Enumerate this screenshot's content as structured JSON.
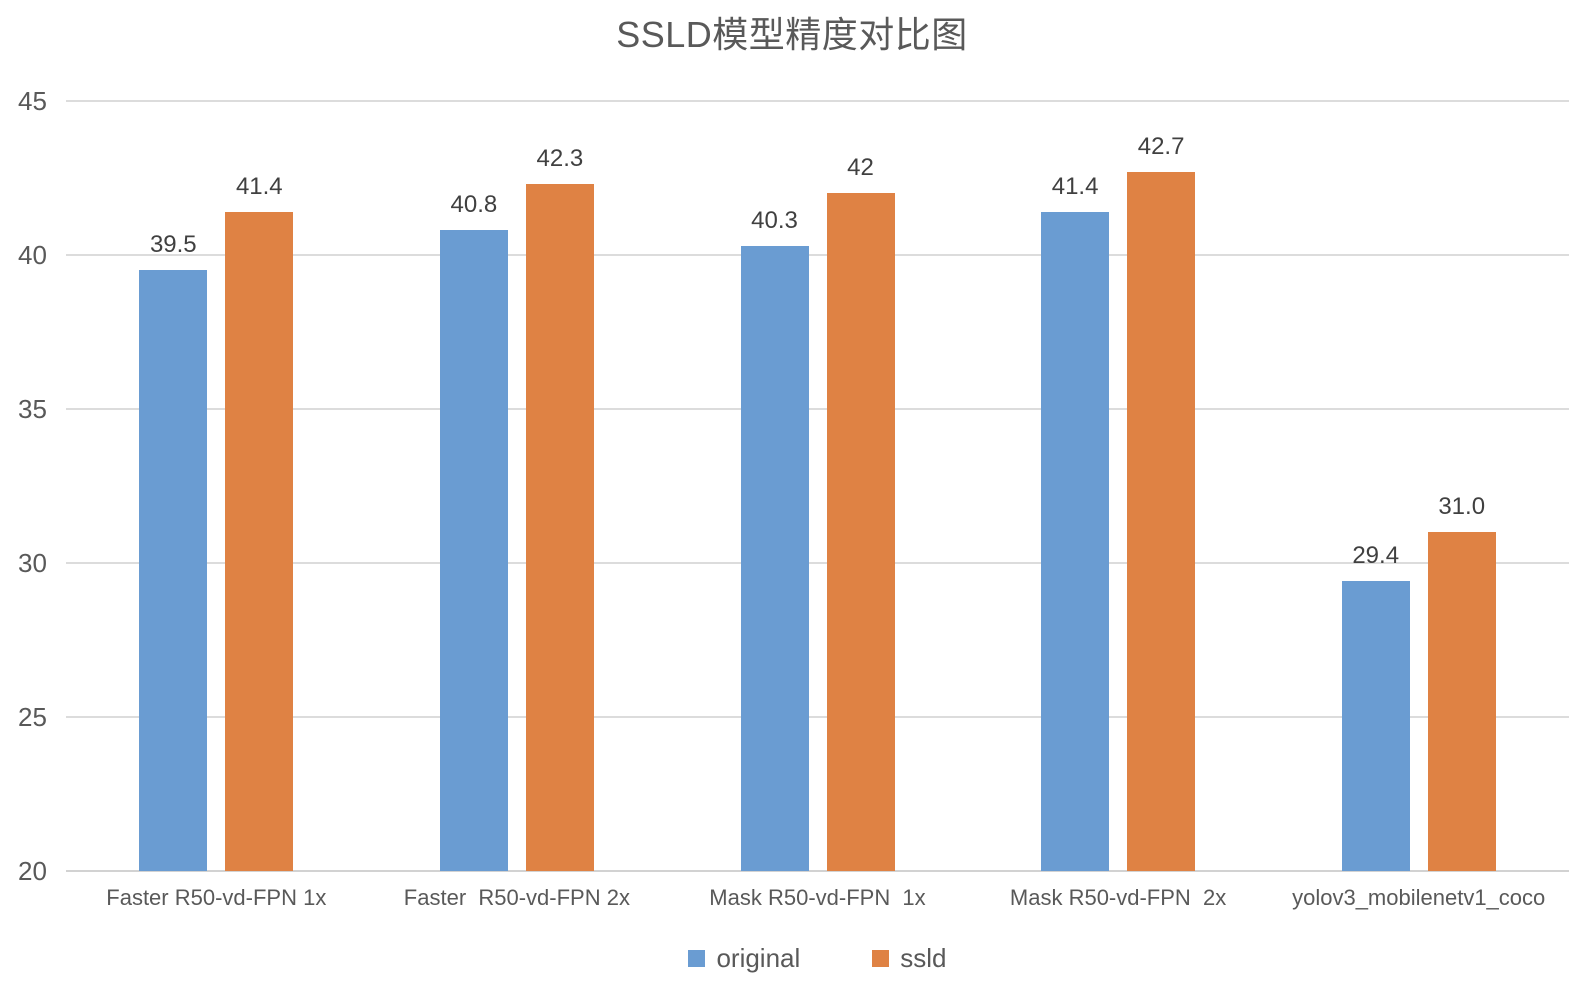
{
  "title": "SSLD模型精度对比图",
  "colors": {
    "original": "#6A9CD2",
    "ssld": "#DF8244",
    "gridline": "#DCDCDC",
    "axis_baseline": "#D2D2D2",
    "title_text": "#595959",
    "tick_text": "#595959",
    "data_label_text": "#404040"
  },
  "chart_data": {
    "type": "bar",
    "title": "SSLD模型精度对比图",
    "categories": [
      "Faster R50-vd-FPN 1x",
      "Faster  R50-vd-FPN 2x",
      "Mask R50-vd-FPN  1x",
      "Mask R50-vd-FPN  2x",
      "yolov3_mobilenetv1_coco"
    ],
    "series": [
      {
        "name": "original",
        "color": "#6A9CD2",
        "values": [
          39.5,
          40.8,
          40.3,
          41.4,
          29.4
        ],
        "labels": [
          "39.5",
          "40.8",
          "40.3",
          "41.4",
          "29.4"
        ]
      },
      {
        "name": "ssld",
        "color": "#DF8244",
        "values": [
          41.4,
          42.3,
          42,
          42.7,
          31.0
        ],
        "labels": [
          "41.4",
          "42.3",
          "42",
          "42.7",
          "31.0"
        ]
      }
    ],
    "xlabel": "",
    "ylabel": "",
    "ylim": [
      20,
      45
    ],
    "yticks": [
      20,
      25,
      30,
      35,
      40,
      45
    ],
    "grid": true,
    "legend_position": "bottom"
  },
  "legend": {
    "items": [
      {
        "label": "original",
        "color": "#6A9CD2"
      },
      {
        "label": "ssld",
        "color": "#DF8244"
      }
    ]
  }
}
